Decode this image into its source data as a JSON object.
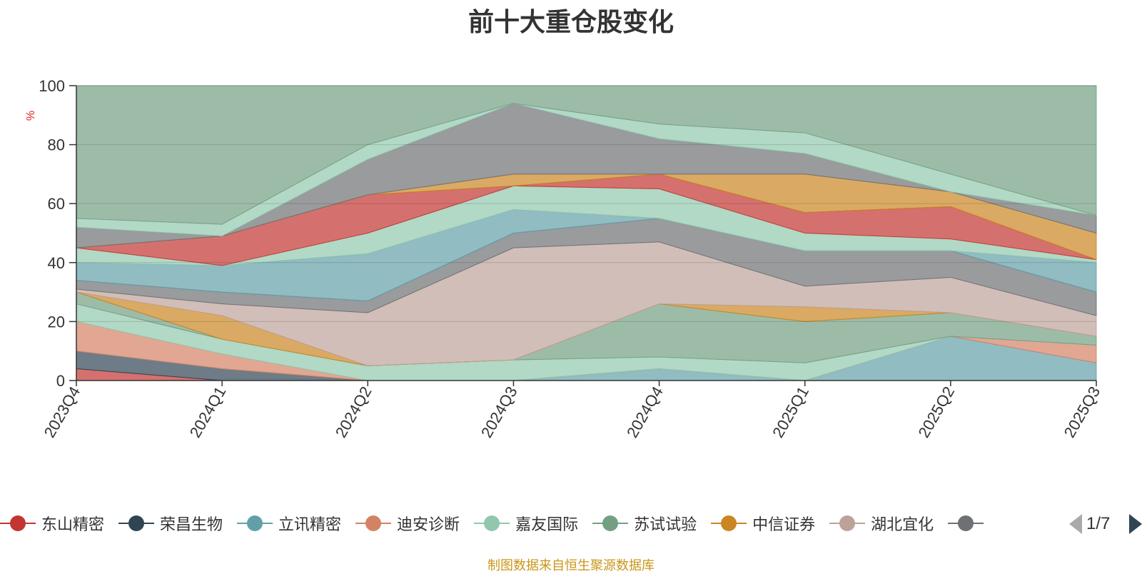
{
  "chart_data": {
    "type": "area",
    "title": "前十大重仓股变化",
    "ylabel": "%",
    "ylim": [
      0,
      100
    ],
    "yticks": [
      0,
      20,
      40,
      60,
      80,
      100
    ],
    "grid": true,
    "x": [
      "2023Q4",
      "2024Q1",
      "2024Q2",
      "2024Q3",
      "2024Q4",
      "2025Q1",
      "2025Q2",
      "2025Q3"
    ],
    "series": [
      {
        "name": "东山精密",
        "color": "#c23531",
        "upper": [
          4,
          0,
          0,
          0,
          0,
          0,
          0,
          0
        ]
      },
      {
        "name": "荣昌生物",
        "color": "#2f4554",
        "upper": [
          10,
          4,
          0,
          0,
          0,
          0,
          0,
          0
        ]
      },
      {
        "name": "立讯精密",
        "color": "#61a0a8",
        "upper": [
          10,
          4,
          0,
          0,
          4,
          0,
          15,
          6
        ]
      },
      {
        "name": "迪安诊断",
        "color": "#d48265",
        "upper": [
          20,
          9,
          0,
          0,
          4,
          0,
          15,
          12
        ]
      },
      {
        "name": "嘉友国际",
        "color": "#91c7ae",
        "upper": [
          26,
          14,
          5,
          7,
          8,
          6,
          15,
          12
        ]
      },
      {
        "name": "苏试试验",
        "color": "#749f83",
        "upper": [
          30,
          14,
          5,
          7,
          26,
          20,
          23,
          15
        ]
      },
      {
        "name": "中信证券",
        "color": "#ca8622",
        "upper": [
          30,
          22,
          5,
          7,
          26,
          25,
          23,
          15
        ]
      },
      {
        "name": "湖北宜化",
        "color": "#bda29a",
        "upper": [
          31,
          26,
          23,
          45,
          47,
          32,
          35,
          22
        ]
      }
    ],
    "extra_layers": [
      {
        "color": "#6e7074",
        "upper": [
          34,
          30,
          27,
          50,
          55,
          44,
          44,
          30
        ]
      },
      {
        "color": "#61a0a8",
        "upper": [
          40,
          39,
          43,
          58,
          55,
          44,
          44,
          40
        ]
      },
      {
        "color": "#91c7ae",
        "upper": [
          45,
          39,
          50,
          66,
          65,
          50,
          48,
          41
        ]
      },
      {
        "color": "#c23531",
        "upper": [
          45,
          49,
          63,
          66,
          70,
          57,
          59,
          41
        ]
      },
      {
        "color": "#ca8622",
        "upper": [
          45,
          49,
          63,
          70,
          70,
          70,
          64,
          50
        ]
      },
      {
        "color": "#6e7074",
        "upper": [
          52,
          49,
          75,
          94,
          82,
          77,
          64,
          56
        ]
      },
      {
        "color": "#91c7ae",
        "upper": [
          55,
          53,
          80,
          94,
          87,
          84,
          70,
          56
        ]
      },
      {
        "color": "#749f83",
        "upper": [
          100,
          100,
          100,
          100,
          100,
          100,
          100,
          100
        ]
      }
    ]
  },
  "legend": {
    "items": [
      {
        "label": "东山精密",
        "color": "#c23531"
      },
      {
        "label": "荣昌生物",
        "color": "#2f4554"
      },
      {
        "label": "立讯精密",
        "color": "#61a0a8"
      },
      {
        "label": "迪安诊断",
        "color": "#d48265"
      },
      {
        "label": "嘉友国际",
        "color": "#91c7ae"
      },
      {
        "label": "苏试试验",
        "color": "#749f83"
      },
      {
        "label": "中信证券",
        "color": "#ca8622"
      },
      {
        "label": "湖北宜化",
        "color": "#bda29a"
      },
      {
        "label": "",
        "color": "#6e7074"
      }
    ],
    "page": "1/7"
  },
  "source_note": "制图数据来自恒生聚源数据库"
}
